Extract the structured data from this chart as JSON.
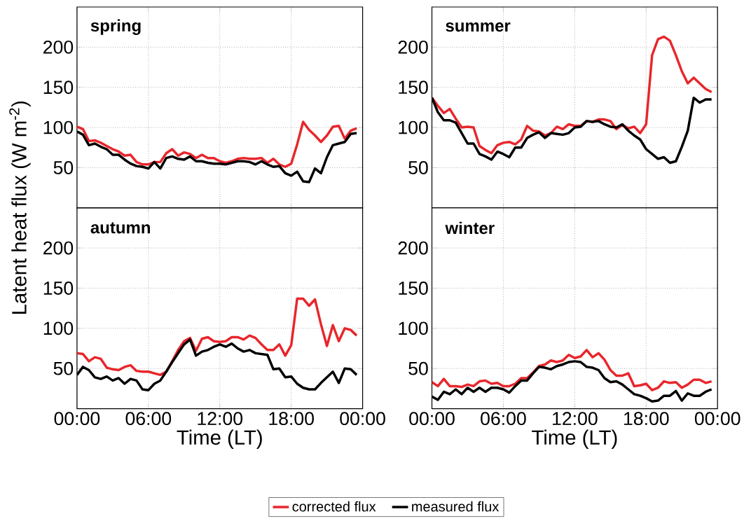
{
  "chart_data": [
    {
      "type": "line",
      "title": "spring",
      "ylabel": "Latent heat flux (W m$^{-2}$)",
      "legend": "bottom",
      "grid": true,
      "tick_labels": "y",
      "x": [
        0,
        0.5,
        1,
        1.5,
        2,
        2.5,
        3,
        3.5,
        4,
        4.5,
        5,
        5.5,
        6,
        6.5,
        7,
        7.5,
        8,
        8.5,
        9,
        9.5,
        10,
        10.5,
        11,
        11.5,
        12,
        12.5,
        13,
        13.5,
        14,
        14.5,
        15,
        15.5,
        16,
        16.5,
        17,
        17.5,
        18,
        18.5,
        19,
        19.5,
        20,
        20.5,
        21,
        21.5,
        22,
        22.5,
        23,
        23.5
      ],
      "xlim": [
        0,
        24
      ],
      "xticks": [
        {
          "value": 0,
          "label": null
        },
        {
          "value": 6,
          "label": null
        },
        {
          "value": 12,
          "label": null
        },
        {
          "value": 18,
          "label": null
        },
        {
          "value": 24,
          "label": null
        }
      ],
      "ylim": [
        0,
        250
      ],
      "yticks": [
        50,
        100,
        150,
        200
      ],
      "series": [
        {
          "name": "corrected flux",
          "color": "#e8262b",
          "values": [
            101,
            98,
            83,
            84,
            81,
            77,
            73,
            70,
            65,
            66,
            57,
            54,
            54,
            57,
            57,
            68,
            73,
            65,
            69,
            67,
            62,
            66,
            62,
            62,
            58,
            56,
            58,
            61,
            62,
            61,
            61,
            62,
            56,
            61,
            54,
            51,
            55,
            79,
            107,
            97,
            90,
            82,
            90,
            101,
            102,
            86,
            96,
            99
          ]
        },
        {
          "name": "measured flux",
          "color": "#000000",
          "values": [
            95,
            91,
            78,
            80,
            76,
            73,
            66,
            66,
            60,
            55,
            52,
            51,
            49,
            57,
            49,
            62,
            64,
            61,
            60,
            64,
            58,
            58,
            56,
            55,
            55,
            54,
            56,
            58,
            58,
            57,
            54,
            58,
            54,
            51,
            52,
            43,
            40,
            45,
            33,
            32,
            49,
            43,
            63,
            78,
            80,
            82,
            92,
            93
          ]
        }
      ]
    },
    {
      "type": "line",
      "title": "summer",
      "grid": true,
      "tick_labels": "y",
      "x": [
        0,
        0.5,
        1,
        1.5,
        2,
        2.5,
        3,
        3.5,
        4,
        4.5,
        5,
        5.5,
        6,
        6.5,
        7,
        7.5,
        8,
        8.5,
        9,
        9.5,
        10,
        10.5,
        11,
        11.5,
        12,
        12.5,
        13,
        13.5,
        14,
        14.5,
        15,
        15.5,
        16,
        16.5,
        17,
        17.5,
        18,
        18.5,
        19,
        19.5,
        20,
        20.5,
        21,
        21.5,
        22,
        22.5,
        23,
        23.5
      ],
      "xlim": [
        0,
        24
      ],
      "xticks": [
        {
          "value": 0,
          "label": null
        },
        {
          "value": 6,
          "label": null
        },
        {
          "value": 12,
          "label": null
        },
        {
          "value": 18,
          "label": null
        },
        {
          "value": 24,
          "label": null
        }
      ],
      "ylim": [
        0,
        250
      ],
      "yticks": [
        50,
        100,
        150,
        200
      ],
      "series": [
        {
          "color": "#e8262b",
          "values": [
            137,
            127,
            118,
            123,
            111,
            100,
            101,
            100,
            77,
            72,
            68,
            78,
            81,
            82,
            79,
            85,
            102,
            96,
            95,
            90,
            93,
            101,
            98,
            104,
            102,
            102,
            108,
            107,
            110,
            110,
            108,
            98,
            103,
            99,
            101,
            93,
            104,
            190,
            210,
            213,
            208,
            190,
            170,
            155,
            162,
            155,
            148,
            144
          ]
        },
        {
          "color": "#000000",
          "values": [
            137,
            119,
            109,
            109,
            106,
            93,
            80,
            80,
            67,
            64,
            60,
            70,
            67,
            63,
            75,
            75,
            87,
            91,
            94,
            87,
            93,
            92,
            91,
            93,
            100,
            101,
            108,
            107,
            108,
            104,
            101,
            100,
            104,
            96,
            90,
            85,
            73,
            67,
            61,
            63,
            56,
            58,
            76,
            96,
            137,
            131,
            135,
            135
          ]
        }
      ]
    },
    {
      "type": "line",
      "title": "autumn",
      "xlabel": "Time (LT)",
      "grid": true,
      "x": [
        0,
        0.5,
        1,
        1.5,
        2,
        2.5,
        3,
        3.5,
        4,
        4.5,
        5,
        5.5,
        6,
        6.5,
        7,
        7.5,
        8,
        8.5,
        9,
        9.5,
        10,
        10.5,
        11,
        11.5,
        12,
        12.5,
        13,
        13.5,
        14,
        14.5,
        15,
        15.5,
        16,
        16.5,
        17,
        17.5,
        18,
        18.5,
        19,
        19.5,
        20,
        20.5,
        21,
        21.5,
        22,
        22.5,
        23,
        23.5
      ],
      "xlim": [
        0,
        24
      ],
      "xticks": [
        {
          "value": 0,
          "label": "00:00"
        },
        {
          "value": 6,
          "label": "06:00"
        },
        {
          "value": 12,
          "label": "12:00"
        },
        {
          "value": 18,
          "label": "18:00"
        },
        {
          "value": 24,
          "label": "00:00"
        }
      ],
      "ylim": [
        0,
        250
      ],
      "yticks": [
        50,
        100,
        150,
        200
      ],
      "series": [
        {
          "color": "#e8262b",
          "values": [
            69,
            68,
            59,
            64,
            62,
            51,
            49,
            48,
            52,
            54,
            47,
            46,
            46,
            44,
            42,
            46,
            59,
            73,
            84,
            88,
            72,
            87,
            89,
            84,
            83,
            84,
            89,
            89,
            86,
            91,
            88,
            80,
            73,
            73,
            80,
            66,
            79,
            137,
            137,
            128,
            136,
            105,
            78,
            104,
            84,
            100,
            98,
            91
          ]
        },
        {
          "color": "#000000",
          "values": [
            42,
            52,
            48,
            39,
            37,
            40,
            35,
            38,
            31,
            37,
            35,
            24,
            23,
            31,
            35,
            46,
            58,
            69,
            80,
            86,
            66,
            71,
            73,
            77,
            80,
            77,
            81,
            75,
            71,
            73,
            69,
            68,
            67,
            49,
            50,
            39,
            40,
            31,
            26,
            24,
            24,
            32,
            39,
            46,
            32,
            50,
            49,
            42
          ]
        }
      ]
    },
    {
      "type": "line",
      "title": "winter",
      "xlabel": "Time (LT)",
      "grid": true,
      "x": [
        0,
        0.5,
        1,
        1.5,
        2,
        2.5,
        3,
        3.5,
        4,
        4.5,
        5,
        5.5,
        6,
        6.5,
        7,
        7.5,
        8,
        8.5,
        9,
        9.5,
        10,
        10.5,
        11,
        11.5,
        12,
        12.5,
        13,
        13.5,
        14,
        14.5,
        15,
        15.5,
        16,
        16.5,
        17,
        17.5,
        18,
        18.5,
        19,
        19.5,
        20,
        20.5,
        21,
        21.5,
        22,
        22.5,
        23,
        23.5
      ],
      "xlim": [
        0,
        24
      ],
      "xticks": [
        {
          "value": 0,
          "label": "00:00"
        },
        {
          "value": 6,
          "label": "06:00"
        },
        {
          "value": 12,
          "label": "12:00"
        },
        {
          "value": 18,
          "label": "18:00"
        },
        {
          "value": 24,
          "label": "00:00"
        }
      ],
      "ylim": [
        0,
        250
      ],
      "yticks": [
        50,
        100,
        150,
        200
      ],
      "series": [
        {
          "color": "#e8262b",
          "values": [
            33,
            28,
            37,
            28,
            28,
            27,
            30,
            28,
            34,
            35,
            31,
            32,
            28,
            28,
            31,
            38,
            38,
            45,
            53,
            55,
            60,
            58,
            60,
            67,
            63,
            65,
            73,
            64,
            69,
            61,
            48,
            41,
            41,
            44,
            28,
            29,
            31,
            23,
            26,
            34,
            32,
            33,
            26,
            30,
            36,
            36,
            32,
            34
          ]
        },
        {
          "color": "#000000",
          "values": [
            15,
            11,
            21,
            18,
            24,
            18,
            26,
            21,
            26,
            21,
            26,
            26,
            24,
            20,
            28,
            35,
            35,
            44,
            52,
            51,
            49,
            53,
            55,
            58,
            59,
            58,
            52,
            51,
            48,
            38,
            33,
            34,
            30,
            24,
            18,
            16,
            13,
            9,
            10,
            16,
            16,
            22,
            10,
            19,
            16,
            16,
            21,
            24
          ]
        }
      ]
    }
  ]
}
